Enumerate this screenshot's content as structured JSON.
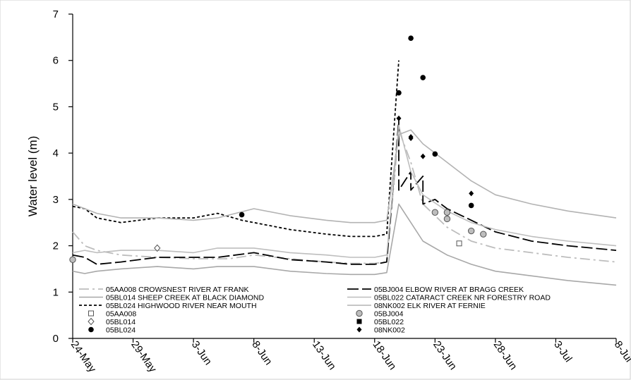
{
  "chart_data": {
    "type": "line",
    "title": "",
    "xlabel": "",
    "ylabel": "Water level (m)",
    "ylim": [
      0,
      7
    ],
    "yticks": [
      0,
      1,
      2,
      3,
      4,
      5,
      6,
      7
    ],
    "xlim": [
      "24-May",
      "8-Jul"
    ],
    "xtick_labels": [
      "24-May",
      "29-May",
      "3-Jun",
      "8-Jun",
      "13-Jun",
      "18-Jun",
      "23-Jun",
      "28-Jun",
      "3-Jul",
      "8-Jul"
    ],
    "grid": false,
    "legend_placement": "bottom",
    "series": [
      {
        "name": "05AA008 CROWSNEST RIVER AT FRANK",
        "style": "long-dash-dot",
        "color": "#bdbdbd",
        "x": [
          "24-May",
          "25-May",
          "26-May",
          "28-May",
          "31-May",
          "3-Jun",
          "6-Jun",
          "8-Jun",
          "11-Jun",
          "14-Jun",
          "16-Jun",
          "18-Jun",
          "19-Jun",
          "20-Jun",
          "21-Jun",
          "22-Jun",
          "24-Jun",
          "26-Jun",
          "28-Jun",
          "1-Jul",
          "4-Jul",
          "8-Jul"
        ],
        "y": [
          2.3,
          2.0,
          1.9,
          1.8,
          1.75,
          1.72,
          1.72,
          1.8,
          1.72,
          1.65,
          1.62,
          1.62,
          1.65,
          4.5,
          3.8,
          2.9,
          2.4,
          2.1,
          1.95,
          1.85,
          1.75,
          1.65
        ]
      },
      {
        "name": "05BJ004 ELBOW RIVER AT BRAGG CREEK",
        "style": "long-dash",
        "color": "#000000",
        "x": [
          "24-May",
          "25-May",
          "26-May",
          "28-May",
          "31-May",
          "3-Jun",
          "5-Jun",
          "8-Jun",
          "11-Jun",
          "14-Jun",
          "16-Jun",
          "18-Jun",
          "19-Jun",
          "20-Jun",
          "20-Jun",
          "21-Jun",
          "21-Jun",
          "22-Jun",
          "22-Jun",
          "23-Jun",
          "24-Jun",
          "26-Jun",
          "28-Jun",
          "1-Jul",
          "4-Jul",
          "8-Jul"
        ],
        "y": [
          1.8,
          1.75,
          1.6,
          1.65,
          1.75,
          1.75,
          1.75,
          1.85,
          1.7,
          1.65,
          1.6,
          1.6,
          1.65,
          4.7,
          3.2,
          3.6,
          3.2,
          3.5,
          2.9,
          3.0,
          2.8,
          2.55,
          2.3,
          2.1,
          2.0,
          1.9
        ]
      },
      {
        "name": "05BL014 SHEEP CREEK AT BLACK DIAMOND",
        "style": "solid",
        "color": "#a8a8a8",
        "x": [
          "24-May",
          "25-May",
          "26-May",
          "28-May",
          "31-May",
          "3-Jun",
          "5-Jun",
          "8-Jun",
          "11-Jun",
          "14-Jun",
          "16-Jun",
          "18-Jun",
          "19-Jun",
          "20-Jun",
          "21-Jun",
          "22-Jun",
          "24-Jun",
          "26-Jun",
          "28-Jun",
          "1-Jul",
          "4-Jul",
          "8-Jul"
        ],
        "y": [
          1.45,
          1.4,
          1.45,
          1.5,
          1.55,
          1.5,
          1.55,
          1.55,
          1.45,
          1.4,
          1.38,
          1.38,
          1.42,
          2.9,
          2.5,
          2.1,
          1.8,
          1.6,
          1.45,
          1.35,
          1.25,
          1.15
        ]
      },
      {
        "name": "05BL022 CATARACT CREEK NR FORESTRY ROAD",
        "style": "solid",
        "color": "#bebebe",
        "x": [
          "24-May",
          "25-May",
          "26-May",
          "28-May",
          "31-May",
          "3-Jun",
          "5-Jun",
          "8-Jun",
          "11-Jun",
          "14-Jun",
          "16-Jun",
          "18-Jun",
          "19-Jun",
          "20-Jun",
          "21-Jun",
          "22-Jun",
          "24-Jun",
          "26-Jun",
          "28-Jun",
          "1-Jul",
          "4-Jul",
          "8-Jul"
        ],
        "y": [
          1.85,
          1.9,
          1.85,
          1.9,
          1.9,
          1.85,
          1.95,
          1.95,
          1.85,
          1.8,
          1.75,
          1.75,
          1.8,
          4.6,
          3.6,
          3.1,
          2.75,
          2.5,
          2.35,
          2.2,
          2.1,
          2.0
        ]
      },
      {
        "name": "05BL024 HIGHWOOD RIVER NEAR MOUTH",
        "style": "short-dash",
        "color": "#000000",
        "x": [
          "24-May",
          "25-May",
          "26-May",
          "28-May",
          "31-May",
          "3-Jun",
          "5-Jun",
          "7-Jun",
          "8-Jun",
          "11-Jun",
          "14-Jun",
          "16-Jun",
          "18-Jun",
          "19-Jun",
          "20-Jun"
        ],
        "y": [
          2.85,
          2.8,
          2.6,
          2.5,
          2.6,
          2.6,
          2.7,
          2.55,
          2.5,
          2.35,
          2.25,
          2.2,
          2.2,
          2.25,
          6.0
        ]
      },
      {
        "name": "08NK002 ELK RIVER AT FERNIE",
        "style": "solid",
        "color": "#b3b3b3",
        "x": [
          "24-May",
          "25-May",
          "26-May",
          "28-May",
          "31-May",
          "3-Jun",
          "5-Jun",
          "8-Jun",
          "11-Jun",
          "14-Jun",
          "16-Jun",
          "18-Jun",
          "19-Jun",
          "20-Jun",
          "21-Jun",
          "22-Jun",
          "24-Jun",
          "26-Jun",
          "28-Jun",
          "1-Jul",
          "4-Jul",
          "8-Jul"
        ],
        "y": [
          2.9,
          2.8,
          2.7,
          2.6,
          2.6,
          2.55,
          2.6,
          2.8,
          2.65,
          2.55,
          2.5,
          2.5,
          2.55,
          4.4,
          4.5,
          4.2,
          3.8,
          3.4,
          3.1,
          2.9,
          2.75,
          2.6
        ]
      }
    ],
    "points": [
      {
        "name": "05AA008",
        "marker": "open-square",
        "x": [
          "25-Jun"
        ],
        "y": [
          2.05
        ]
      },
      {
        "name": "05BJ004",
        "marker": "grey-circle",
        "x": [
          "24-May",
          "23-Jun",
          "24-Jun",
          "24-Jun",
          "26-Jun",
          "27-Jun"
        ],
        "y": [
          1.7,
          2.72,
          2.72,
          2.58,
          2.32,
          2.25
        ]
      },
      {
        "name": "05BL014",
        "marker": "open-diamond",
        "x": [
          "31-May"
        ],
        "y": [
          1.95
        ]
      },
      {
        "name": "05BL022",
        "marker": "filled-square",
        "x": [],
        "y": []
      },
      {
        "name": "05BL024",
        "marker": "filled-circle",
        "x": [
          "7-Jun",
          "20-Jun",
          "21-Jun",
          "22-Jun",
          "23-Jun",
          "26-Jun"
        ],
        "y": [
          2.67,
          5.3,
          6.48,
          5.63,
          3.98,
          2.87
        ]
      },
      {
        "name": "08NK002",
        "marker": "filled-diamond",
        "x": [
          "20-Jun",
          "21-Jun",
          "21-Jun",
          "22-Jun",
          "26-Jun"
        ],
        "y": [
          4.75,
          4.35,
          4.32,
          3.93,
          3.13
        ]
      }
    ]
  }
}
